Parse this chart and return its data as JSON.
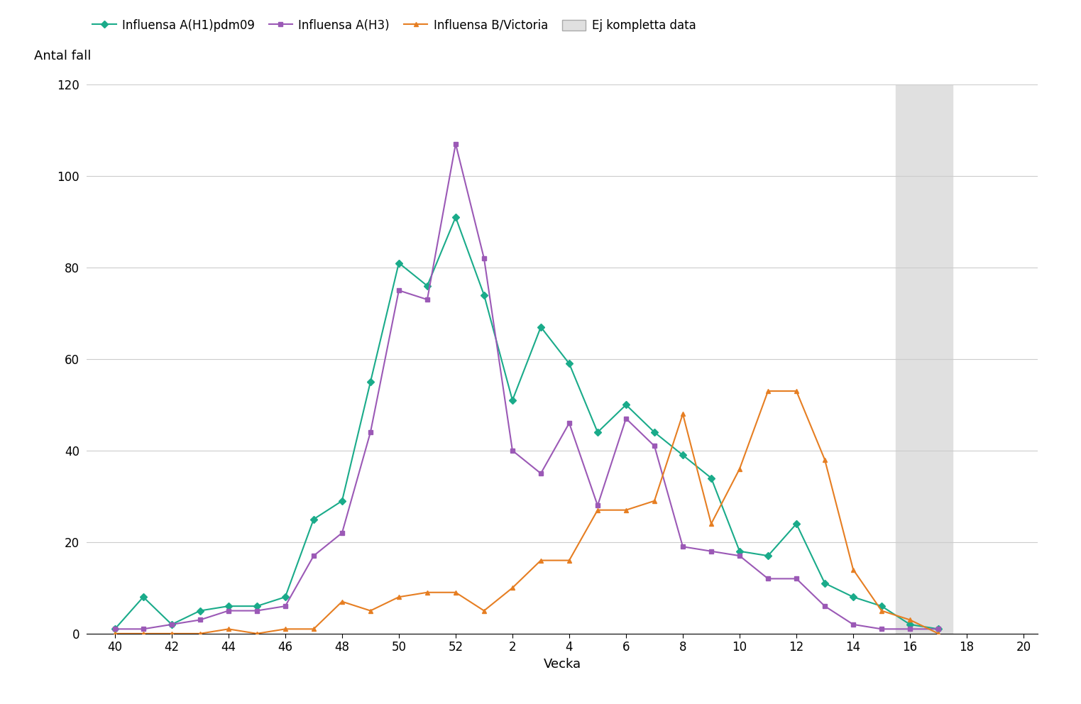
{
  "title_ylabel": "Antal fall",
  "xlabel": "Vecka",
  "ylim": [
    0,
    120
  ],
  "yticks": [
    0,
    20,
    40,
    60,
    80,
    100,
    120
  ],
  "shade_color": "#e0e0e0",
  "background_color": "#ffffff",
  "series": {
    "H1": {
      "label": "Influensa A(H1)pdm09",
      "color": "#1aab8a",
      "marker": "D",
      "markersize": 5,
      "x": [
        40,
        41,
        42,
        43,
        44,
        45,
        46,
        47,
        48,
        49,
        50,
        51,
        52,
        53,
        54,
        55,
        56,
        57,
        58,
        59,
        60,
        61,
        62,
        63,
        64,
        65,
        66,
        67,
        68,
        69
      ],
      "y": [
        1,
        8,
        2,
        5,
        6,
        6,
        8,
        25,
        29,
        55,
        81,
        76,
        91,
        74,
        51,
        67,
        59,
        44,
        50,
        44,
        39,
        34,
        18,
        17,
        24,
        11,
        8,
        6,
        2,
        1
      ]
    },
    "H3": {
      "label": "Influensa A(H3)",
      "color": "#9b59b6",
      "marker": "s",
      "markersize": 5,
      "x": [
        40,
        41,
        42,
        43,
        44,
        45,
        46,
        47,
        48,
        49,
        50,
        51,
        52,
        53,
        54,
        55,
        56,
        57,
        58,
        59,
        60,
        61,
        62,
        63,
        64,
        65,
        66,
        67,
        68,
        69
      ],
      "y": [
        1,
        1,
        2,
        3,
        5,
        5,
        6,
        17,
        22,
        44,
        75,
        73,
        107,
        82,
        40,
        35,
        46,
        28,
        47,
        41,
        19,
        18,
        17,
        12,
        12,
        6,
        2,
        1,
        1,
        1
      ]
    },
    "B": {
      "label": "Influensa B/Victoria",
      "color": "#e67e22",
      "marker": "^",
      "markersize": 5,
      "x": [
        40,
        41,
        42,
        43,
        44,
        45,
        46,
        47,
        48,
        49,
        50,
        51,
        52,
        53,
        54,
        55,
        56,
        57,
        58,
        59,
        60,
        61,
        62,
        63,
        64,
        65,
        66,
        67,
        68,
        69
      ],
      "y": [
        0,
        0,
        0,
        0,
        1,
        0,
        1,
        1,
        7,
        5,
        8,
        9,
        9,
        5,
        10,
        16,
        16,
        27,
        27,
        29,
        48,
        24,
        36,
        53,
        53,
        38,
        14,
        5,
        3,
        0
      ]
    }
  },
  "xtick_positions": [
    40,
    42,
    44,
    46,
    48,
    50,
    52,
    54,
    56,
    58,
    60,
    62,
    64,
    66,
    68,
    70,
    72
  ],
  "xtick_labels": [
    "40",
    "42",
    "44",
    "46",
    "48",
    "50",
    "52",
    "2",
    "4",
    "6",
    "8",
    "10",
    "12",
    "14",
    "16",
    "18",
    "20"
  ],
  "xlim": [
    39.0,
    72.5
  ],
  "shade_x_start": 67.5,
  "shade_x_end": 69.5
}
